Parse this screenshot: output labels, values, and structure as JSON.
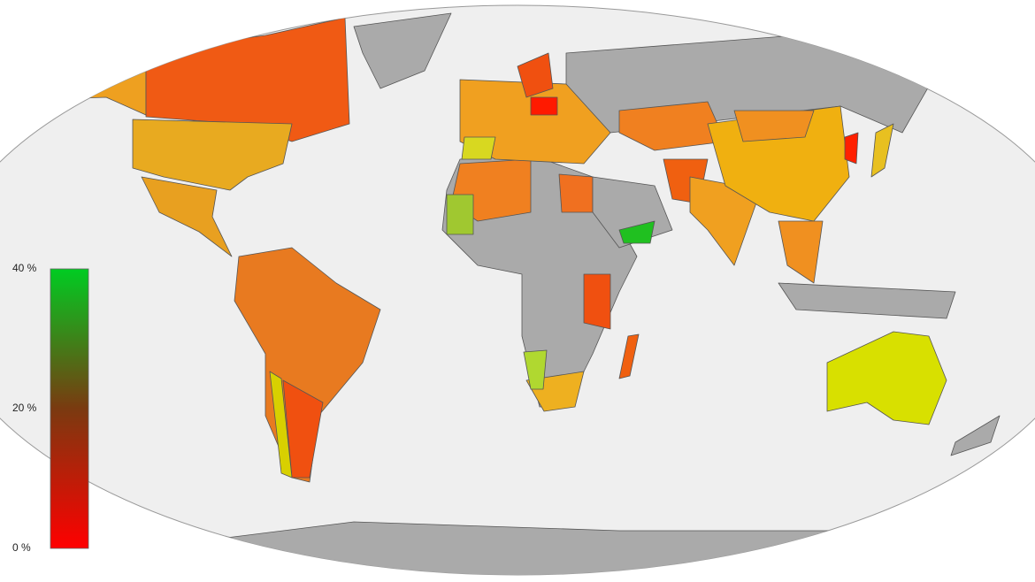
{
  "legend": {
    "ticks": [
      {
        "value": 40,
        "label": "40 %"
      },
      {
        "value": 20,
        "label": "20 %"
      },
      {
        "value": 0,
        "label": "0 %"
      }
    ],
    "lim": [
      0,
      40
    ],
    "colors": [
      "#ff0000",
      "#7a3a10",
      "#00cc22"
    ]
  }
}
